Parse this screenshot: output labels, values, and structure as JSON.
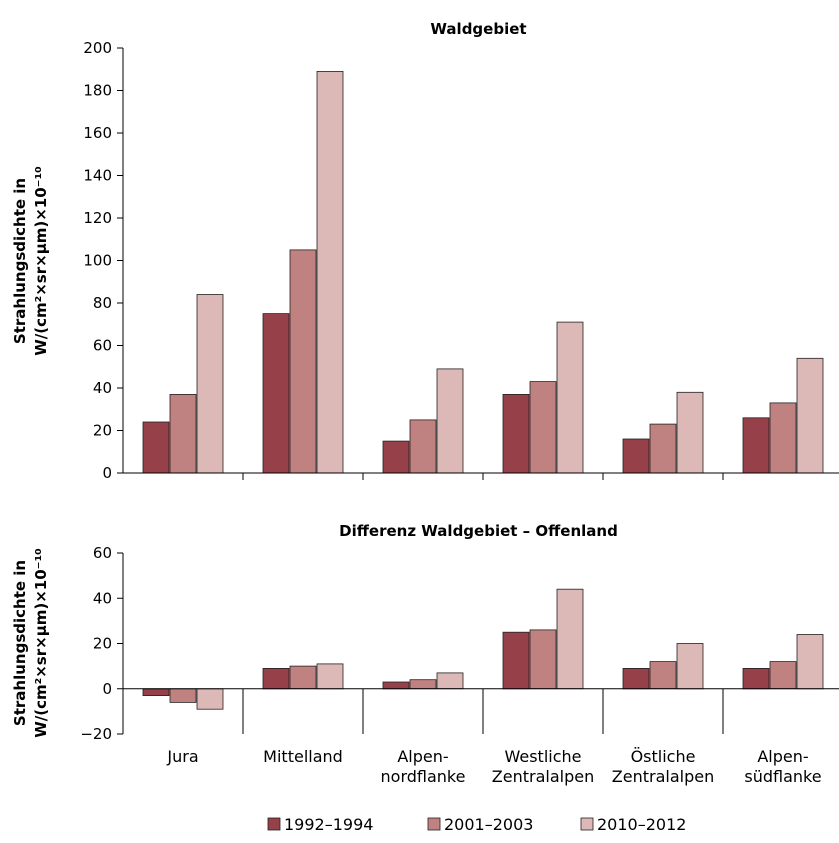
{
  "chart_data": [
    {
      "type": "bar",
      "title": "Waldgebiet",
      "ylabel_line1": "Strahlungsdichte in",
      "ylabel_line2": "W/(cm²×sr×µm)×10⁻¹⁰",
      "ylim": [
        0,
        200
      ],
      "yticks": [
        0,
        20,
        40,
        60,
        80,
        100,
        120,
        140,
        160,
        180,
        200
      ],
      "categories": [
        "Jura",
        "Mittelland",
        "Alpennordflanke",
        "Westliche Zentralalpen",
        "Östliche Zentralalpen",
        "Alpensüdflanke"
      ],
      "series": [
        {
          "name": "1992–1994",
          "values": [
            24,
            75,
            15,
            37,
            16,
            26
          ]
        },
        {
          "name": "2001–2003",
          "values": [
            37,
            105,
            25,
            43,
            23,
            33
          ]
        },
        {
          "name": "2010–2012",
          "values": [
            84,
            189,
            49,
            71,
            38,
            54
          ]
        }
      ],
      "grid": false
    },
    {
      "type": "bar",
      "title": "Differenz Waldgebiet – Offenland",
      "ylabel_line1": "Strahlungsdichte in",
      "ylabel_line2": "W/(cm²×sr×µm)×10⁻¹⁰",
      "ylim": [
        -20,
        60
      ],
      "yticks": [
        -20,
        0,
        20,
        40,
        60
      ],
      "categories": [
        "Jura",
        "Mittelland",
        "Alpennordflanke",
        "Westliche Zentralalpen",
        "Östliche Zentralalpen",
        "Alpensüdflanke"
      ],
      "series": [
        {
          "name": "1992–1994",
          "values": [
            -3,
            9,
            3,
            25,
            9,
            9
          ]
        },
        {
          "name": "2001–2003",
          "values": [
            -6,
            10,
            4,
            26,
            12,
            12
          ]
        },
        {
          "name": "2010–2012",
          "values": [
            -9,
            11,
            7,
            44,
            20,
            24
          ]
        }
      ],
      "grid": false
    }
  ],
  "x_tick_labels": [
    [
      "Jura"
    ],
    [
      "Mittelland"
    ],
    [
      "Alpen-",
      "nordflanke"
    ],
    [
      "Westliche",
      "Zentralalpen"
    ],
    [
      "Östliche",
      "Zentralalpen"
    ],
    [
      "Alpen-",
      "südflanke"
    ]
  ],
  "legend": {
    "placement": "bottom-center",
    "items": [
      "1992–1994",
      "2001–2003",
      "2010–2012"
    ]
  },
  "colors": {
    "series": [
      "#96404a",
      "#c08280",
      "#dcb8b6"
    ],
    "bar_stroke": "#222222",
    "axis": "#000000"
  }
}
